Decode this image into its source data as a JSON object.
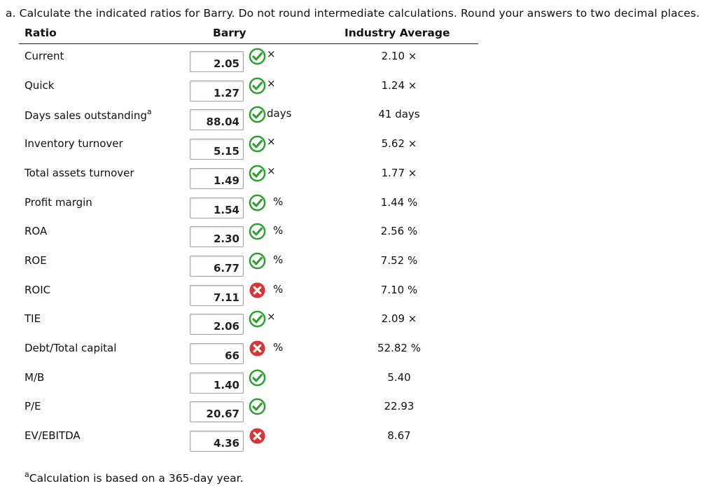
{
  "question": {
    "instructions": "a. Calculate the indicated ratios for Barry. Do not round intermediate calculations. Round your answers to two decimal places."
  },
  "table": {
    "headers": {
      "ratio": "Ratio",
      "barry": "Barry",
      "industry": "Industry Average"
    },
    "rows": [
      {
        "label": "Current",
        "sup": "",
        "value": "2.05",
        "status": "correct",
        "unit": "×",
        "industry": "2.10 ×"
      },
      {
        "label": "Quick",
        "sup": "",
        "value": "1.27",
        "status": "correct",
        "unit": "×",
        "industry": "1.24 ×"
      },
      {
        "label": "Days sales outstanding",
        "sup": "a",
        "value": "88.04",
        "status": "correct",
        "unit": "days",
        "industry": "41 days"
      },
      {
        "label": "Inventory turnover",
        "sup": "",
        "value": "5.15",
        "status": "correct",
        "unit": "×",
        "industry": "5.62 ×"
      },
      {
        "label": "Total assets turnover",
        "sup": "",
        "value": "1.49",
        "status": "correct",
        "unit": "×",
        "industry": "1.77 ×"
      },
      {
        "label": "Profit margin",
        "sup": "",
        "value": "1.54",
        "status": "correct",
        "unit": "%",
        "industry": "1.44 %"
      },
      {
        "label": "ROA",
        "sup": "",
        "value": "2.30",
        "status": "correct",
        "unit": "%",
        "industry": "2.56 %"
      },
      {
        "label": "ROE",
        "sup": "",
        "value": "6.77",
        "status": "correct",
        "unit": "%",
        "industry": "7.52 %"
      },
      {
        "label": "ROIC",
        "sup": "",
        "value": "7.11",
        "status": "incorrect",
        "unit": "%",
        "industry": "7.10 %"
      },
      {
        "label": "TIE",
        "sup": "",
        "value": "2.06",
        "status": "correct",
        "unit": "×",
        "industry": "2.09 ×"
      },
      {
        "label": "Debt/Total capital",
        "sup": "",
        "value": "66",
        "status": "incorrect",
        "unit": "%",
        "industry": "52.82 %"
      },
      {
        "label": "M/B",
        "sup": "",
        "value": "1.40",
        "status": "correct",
        "unit": "",
        "industry": "5.40"
      },
      {
        "label": "P/E",
        "sup": "",
        "value": "20.67",
        "status": "correct",
        "unit": "",
        "industry": "22.93"
      },
      {
        "label": "EV/EBITDA",
        "sup": "",
        "value": "4.36",
        "status": "incorrect",
        "unit": "",
        "industry": "8.67"
      }
    ]
  },
  "footnote": {
    "sup": "a",
    "text": "Calculation is based on a 365-day year."
  },
  "colors": {
    "correct": "#2e9e2e",
    "incorrect": "#d93333"
  }
}
